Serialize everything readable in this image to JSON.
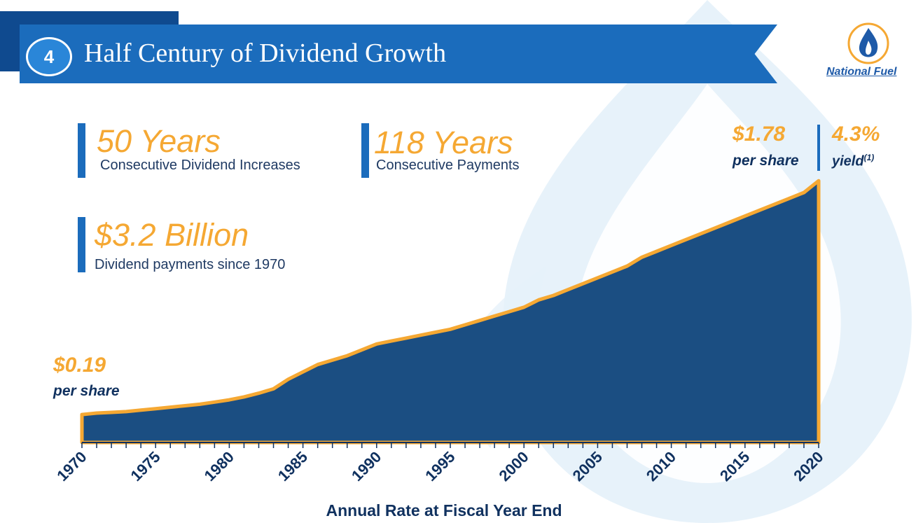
{
  "header": {
    "slide_number": "4",
    "title": "Half Century of Dividend Growth",
    "logo_text": "National Fuel"
  },
  "stats": [
    {
      "value": "50 Years",
      "label": "Consecutive Dividend Increases"
    },
    {
      "value": "118 Years",
      "label": "Consecutive Payments"
    },
    {
      "value": "$3.2 Billion",
      "label": "Dividend payments since 1970"
    }
  ],
  "callouts": {
    "start_value": "$0.19",
    "start_label": "per share",
    "end_value": "$1.78",
    "end_label": "per share",
    "yield_value": "4.3%",
    "yield_label": "yield",
    "yield_note": "(1)"
  },
  "colors": {
    "area_fill": "#1b4e82",
    "area_outline": "#f5a833",
    "accent_orange": "#f5a833",
    "brand_blue": "#1b6cbc",
    "navy_text": "#10315f"
  },
  "chart_data": {
    "type": "area",
    "title": "",
    "xlabel": "Annual Rate at Fiscal Year End",
    "ylabel": "",
    "x_ticks": [
      "1970",
      "1975",
      "1980",
      "1985",
      "1990",
      "1995",
      "2000",
      "2005",
      "2010",
      "2015",
      "2020"
    ],
    "xlim": [
      1970,
      2020
    ],
    "ylim": [
      0,
      2.0
    ],
    "x": [
      1970,
      1971,
      1972,
      1973,
      1974,
      1975,
      1976,
      1977,
      1978,
      1979,
      1980,
      1981,
      1982,
      1983,
      1984,
      1985,
      1986,
      1987,
      1988,
      1989,
      1990,
      1991,
      1992,
      1993,
      1994,
      1995,
      1996,
      1997,
      1998,
      1999,
      2000,
      2001,
      2002,
      2003,
      2004,
      2005,
      2006,
      2007,
      2008,
      2009,
      2010,
      2011,
      2012,
      2013,
      2014,
      2015,
      2016,
      2017,
      2018,
      2019,
      2020
    ],
    "series": [
      {
        "values": [
          0.19,
          0.2,
          0.205,
          0.21,
          0.22,
          0.23,
          0.24,
          0.25,
          0.26,
          0.275,
          0.29,
          0.31,
          0.335,
          0.365,
          0.43,
          0.48,
          0.53,
          0.56,
          0.59,
          0.63,
          0.67,
          0.69,
          0.71,
          0.73,
          0.75,
          0.77,
          0.8,
          0.83,
          0.86,
          0.89,
          0.92,
          0.97,
          1.0,
          1.04,
          1.08,
          1.12,
          1.16,
          1.2,
          1.26,
          1.3,
          1.34,
          1.38,
          1.42,
          1.46,
          1.5,
          1.54,
          1.58,
          1.62,
          1.66,
          1.7,
          1.78
        ]
      }
    ],
    "grid": false,
    "legend": "none"
  }
}
